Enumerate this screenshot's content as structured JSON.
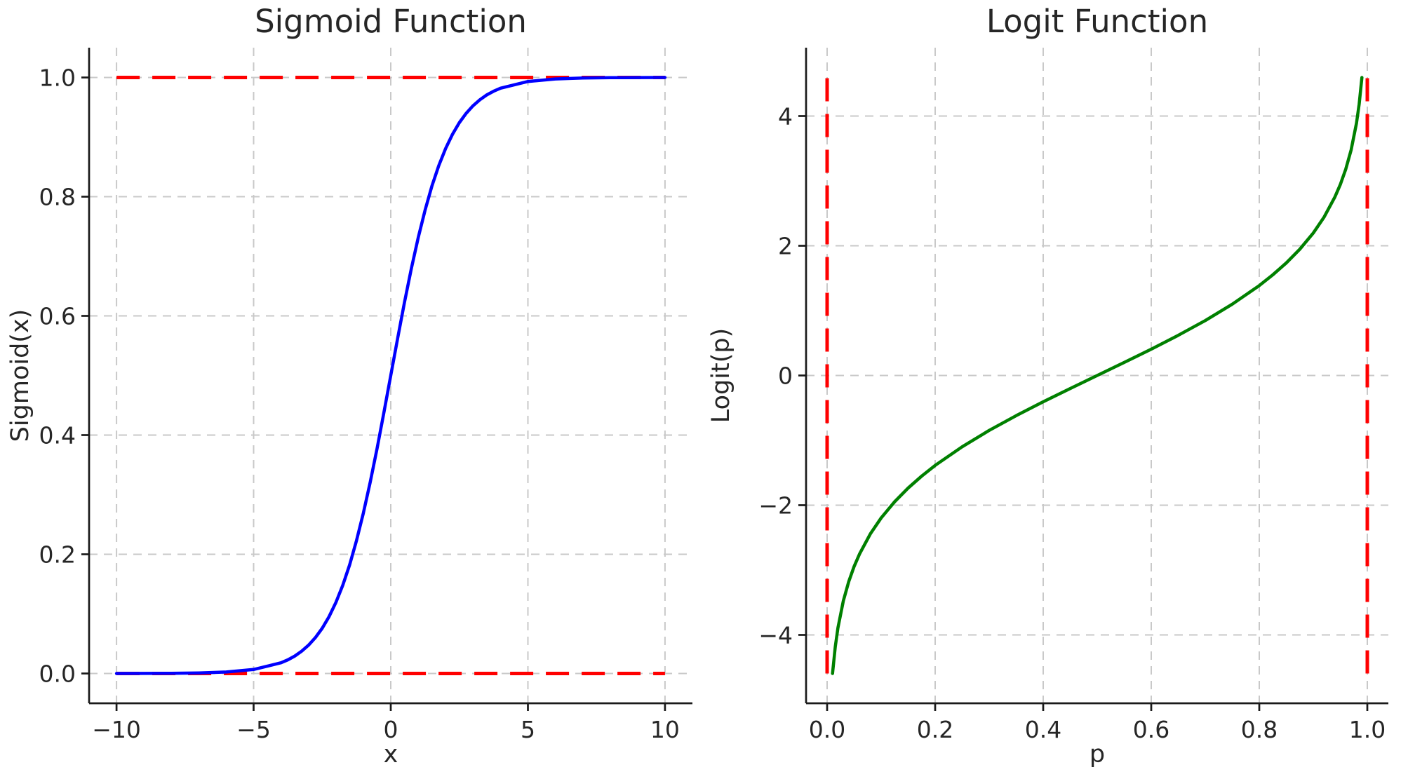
{
  "figure": {
    "background": "#ffffff",
    "grid_color": "#c9c9c9"
  },
  "chart_data": [
    {
      "type": "line",
      "title": "Sigmoid Function",
      "xlabel": "x",
      "ylabel": "Sigmoid(x)",
      "xlim": [
        -11,
        11
      ],
      "ylim": [
        -0.05,
        1.05
      ],
      "grid": true,
      "legend": false,
      "xticks": {
        "values": [
          -10,
          -5,
          0,
          5,
          10
        ],
        "labels": [
          "−10",
          "−5",
          "0",
          "5",
          "10"
        ]
      },
      "yticks": {
        "values": [
          0.0,
          0.2,
          0.4,
          0.6,
          0.8,
          1.0
        ],
        "labels": [
          "0.0",
          "0.2",
          "0.4",
          "0.6",
          "0.8",
          "1.0"
        ]
      },
      "series": [
        {
          "id": "sigmoid",
          "color": "#0000ff",
          "style": "solid",
          "x": [
            -10,
            -9,
            -8,
            -7,
            -6,
            -5,
            -4,
            -3.75,
            -3.5,
            -3.25,
            -3,
            -2.75,
            -2.5,
            -2.25,
            -2,
            -1.75,
            -1.5,
            -1.25,
            -1,
            -0.75,
            -0.5,
            -0.25,
            0,
            0.25,
            0.5,
            0.75,
            1,
            1.25,
            1.5,
            1.75,
            2,
            2.25,
            2.5,
            2.75,
            3,
            3.25,
            3.5,
            3.75,
            4,
            5,
            6,
            7,
            8,
            9,
            10
          ],
          "y": [
            0.0,
            0.0001,
            0.0003,
            0.0009,
            0.0025,
            0.0067,
            0.018,
            0.023,
            0.0293,
            0.0374,
            0.0474,
            0.0601,
            0.0759,
            0.0953,
            0.1192,
            0.148,
            0.1824,
            0.2227,
            0.2689,
            0.3208,
            0.3775,
            0.4378,
            0.5,
            0.5622,
            0.6225,
            0.6792,
            0.7311,
            0.7773,
            0.8176,
            0.852,
            0.8808,
            0.9047,
            0.9241,
            0.9399,
            0.9526,
            0.9626,
            0.9707,
            0.977,
            0.982,
            0.9933,
            0.9975,
            0.9991,
            0.9997,
            0.9999,
            1.0
          ]
        }
      ],
      "reference_lines": [
        {
          "name": "upper-asymptote-line",
          "orientation": "horizontal",
          "value": 1.0,
          "from": -10,
          "to": 10,
          "color": "#ff0000",
          "style": "dashed"
        },
        {
          "name": "lower-asymptote-line",
          "orientation": "horizontal",
          "value": 0.0,
          "from": -10,
          "to": 10,
          "color": "#ff0000",
          "style": "dashed"
        }
      ]
    },
    {
      "type": "line",
      "title": "Logit Function",
      "xlabel": "p",
      "ylabel": "Logit(p)",
      "xlim": [
        -0.039,
        1.039
      ],
      "ylim": [
        -5.054,
        5.054
      ],
      "grid": true,
      "legend": false,
      "xticks": {
        "values": [
          0.0,
          0.2,
          0.4,
          0.6,
          0.8,
          1.0
        ],
        "labels": [
          "0.0",
          "0.2",
          "0.4",
          "0.6",
          "0.8",
          "1.0"
        ]
      },
      "yticks": {
        "values": [
          -4,
          -2,
          0,
          2,
          4
        ],
        "labels": [
          "−4",
          "−2",
          "0",
          "2",
          "4"
        ]
      },
      "series": [
        {
          "id": "logit",
          "color": "#008000",
          "style": "solid",
          "x": [
            0.01,
            0.015,
            0.02,
            0.03,
            0.04,
            0.05,
            0.06,
            0.08,
            0.1,
            0.125,
            0.15,
            0.175,
            0.2,
            0.25,
            0.3,
            0.35,
            0.4,
            0.45,
            0.5,
            0.55,
            0.6,
            0.65,
            0.7,
            0.75,
            0.8,
            0.825,
            0.85,
            0.875,
            0.9,
            0.92,
            0.94,
            0.95,
            0.96,
            0.97,
            0.98,
            0.985,
            0.99
          ],
          "y": [
            -4.595,
            -4.185,
            -3.892,
            -3.476,
            -3.178,
            -2.944,
            -2.752,
            -2.442,
            -2.197,
            -1.946,
            -1.735,
            -1.551,
            -1.386,
            -1.099,
            -0.847,
            -0.619,
            -0.405,
            -0.201,
            0,
            0.201,
            0.405,
            0.619,
            0.847,
            1.099,
            1.386,
            1.551,
            1.735,
            1.946,
            2.197,
            2.442,
            2.752,
            2.944,
            3.178,
            3.476,
            3.892,
            4.185,
            4.595
          ]
        }
      ],
      "reference_lines": [
        {
          "name": "left-asymptote-line",
          "orientation": "vertical",
          "value": 0.0,
          "from": -4.595,
          "to": 4.595,
          "color": "#ff0000",
          "style": "dashed"
        },
        {
          "name": "right-asymptote-line",
          "orientation": "vertical",
          "value": 1.0,
          "from": -4.595,
          "to": 4.595,
          "color": "#ff0000",
          "style": "dashed"
        }
      ]
    }
  ]
}
